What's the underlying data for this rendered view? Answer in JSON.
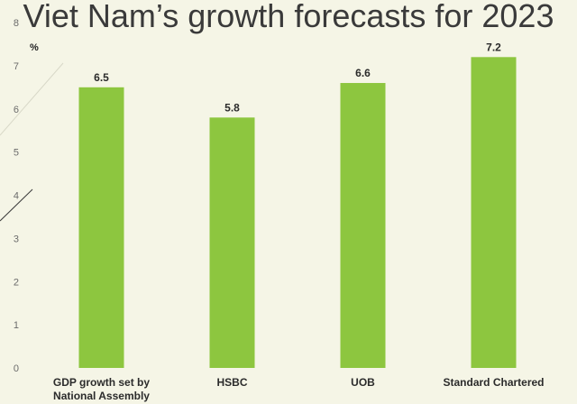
{
  "chart_data": {
    "type": "bar",
    "title": "Viet Nam’s growth forecasts for 2023",
    "ylabel": "%",
    "xlabel": "",
    "ylim": [
      0,
      8
    ],
    "yticks": [
      "0",
      "1",
      "2",
      "3",
      "4",
      "5",
      "6",
      "7",
      "8"
    ],
    "categories": [
      [
        "GDP growth set by",
        "National Assembly"
      ],
      [
        "HSBC"
      ],
      [
        "UOB"
      ],
      [
        "Standard Chartered"
      ]
    ],
    "values": [
      6.5,
      5.8,
      6.6,
      7.2
    ],
    "data_labels": [
      "6.5",
      "5.8",
      "6.6",
      "7.2"
    ],
    "grid": false,
    "legend": "none",
    "colors": {
      "bar": "#8dc63f",
      "background": "#f5f5e6",
      "title": "#3a3a3a"
    }
  }
}
